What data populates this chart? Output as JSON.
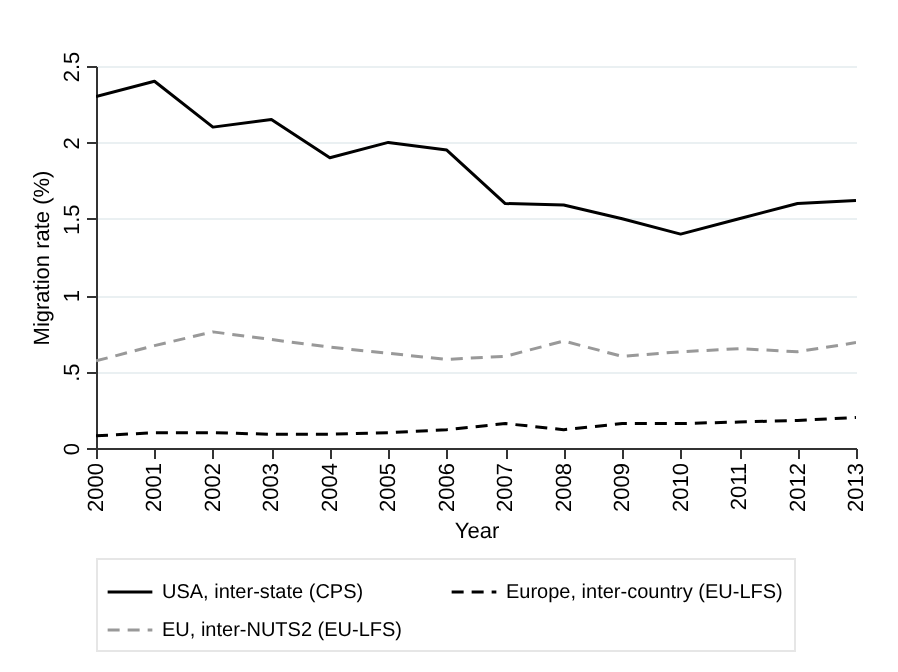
{
  "chart_data": {
    "type": "line",
    "xlabel": "Year",
    "ylabel": "Migration rate (%)",
    "x": [
      2000,
      2001,
      2002,
      2003,
      2004,
      2005,
      2006,
      2007,
      2008,
      2009,
      2010,
      2011,
      2012,
      2013
    ],
    "xlim": [
      2000,
      2013
    ],
    "xticks": [
      2000,
      2001,
      2002,
      2003,
      2004,
      2005,
      2006,
      2007,
      2008,
      2009,
      2010,
      2011,
      2012,
      2013
    ],
    "ylim": [
      0,
      2.5
    ],
    "yticks": [
      0,
      {
        "value": 0.5,
        "label": ".5"
      },
      1,
      1.5,
      2,
      2.5
    ],
    "grid": "y",
    "legend": "bottom",
    "series": [
      {
        "name": "USA, inter-state (CPS)",
        "color": "#000000",
        "line_style": "solid",
        "values": [
          2.3,
          2.4,
          2.1,
          2.15,
          1.9,
          2.0,
          1.95,
          1.6,
          1.59,
          1.5,
          1.4,
          1.5,
          1.6,
          1.62
        ]
      },
      {
        "name": "Europe, inter-country (EU-LFS)",
        "color": "#000000",
        "line_style": "dashed",
        "values": [
          0.08,
          0.1,
          0.1,
          0.09,
          0.09,
          0.1,
          0.12,
          0.16,
          0.12,
          0.16,
          0.16,
          0.17,
          0.18,
          0.2
        ]
      },
      {
        "name": "EU, inter-NUTS2 (EU-LFS)",
        "color": "#999999",
        "line_style": "dashed",
        "values": [
          0.57,
          0.67,
          0.76,
          0.71,
          0.66,
          0.62,
          0.58,
          0.6,
          0.7,
          0.6,
          0.63,
          0.65,
          0.63,
          0.69
        ]
      }
    ]
  }
}
